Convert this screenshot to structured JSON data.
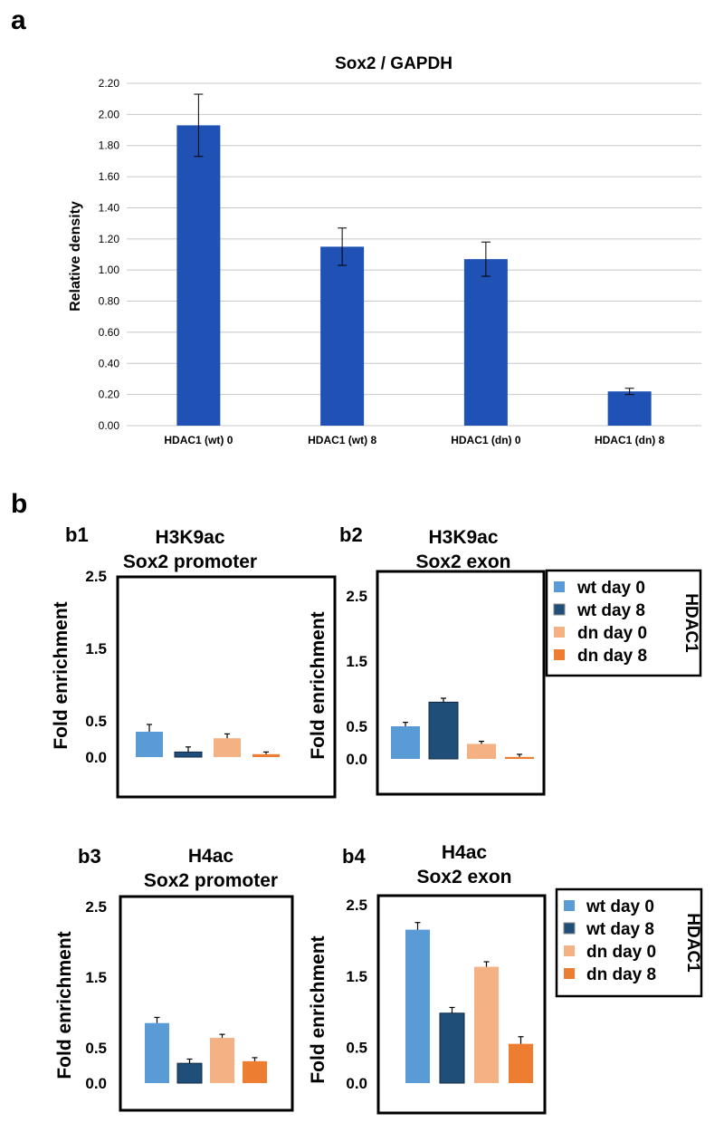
{
  "labels": {
    "a": "a",
    "b": "b"
  },
  "chart_data": [
    {
      "id": "a",
      "type": "bar",
      "title": "Sox2 / GAPDH",
      "ylabel": "Relative density",
      "categories": [
        "HDAC1 (wt) 0",
        "HDAC1 (wt) 8",
        "HDAC1 (dn) 0",
        "HDAC1 (dn) 8"
      ],
      "values": [
        1.93,
        1.15,
        1.07,
        0.22
      ],
      "errors": [
        0.2,
        0.12,
        0.11,
        0.02
      ],
      "ylim": [
        0,
        2.2
      ],
      "yticks": [
        "0.00",
        "0.20",
        "0.40",
        "0.60",
        "0.80",
        "1.00",
        "1.20",
        "1.40",
        "1.60",
        "1.80",
        "2.00",
        "2.20"
      ],
      "grid": true,
      "bar_color": "#1f52b4"
    },
    {
      "id": "b1",
      "type": "bar",
      "label": "b1",
      "title": [
        "H3K9ac",
        "Sox2 promoter"
      ],
      "ylabel": "Fold enrichment",
      "categories": [
        "wt day 0",
        "wt day 8",
        "dn day 0",
        "dn day 8"
      ],
      "values": [
        0.35,
        0.07,
        0.26,
        0.04
      ],
      "errors": [
        0.1,
        0.07,
        0.06,
        0.03
      ],
      "ylim": [
        0,
        2.5
      ],
      "yticks": [
        "0.0",
        "0.5",
        "1.5",
        "2.5"
      ]
    },
    {
      "id": "b2",
      "type": "bar",
      "label": "b2",
      "title": [
        "H3K9ac",
        "Sox2 exon"
      ],
      "ylabel": "Fold enrichment",
      "categories": [
        "wt day 0",
        "wt day 8",
        "dn day 0",
        "dn day 8"
      ],
      "values": [
        0.5,
        0.87,
        0.23,
        0.03
      ],
      "errors": [
        0.06,
        0.06,
        0.04,
        0.04
      ],
      "ylim": [
        0,
        2.5
      ],
      "yticks": [
        "0.0",
        "0.5",
        "1.5",
        "2.5"
      ]
    },
    {
      "id": "b3",
      "type": "bar",
      "label": "b3",
      "title": [
        "H4ac",
        "Sox2 promoter"
      ],
      "ylabel": "Fold enrichment",
      "categories": [
        "wt day 0",
        "wt day 8",
        "dn day 0",
        "dn day 8"
      ],
      "values": [
        0.85,
        0.28,
        0.64,
        0.31
      ],
      "errors": [
        0.08,
        0.06,
        0.05,
        0.05
      ],
      "ylim": [
        0,
        2.5
      ],
      "yticks": [
        "0.0",
        "0.5",
        "1.5",
        "2.5"
      ]
    },
    {
      "id": "b4",
      "type": "bar",
      "label": "b4",
      "title": [
        "H4ac",
        "Sox2 exon"
      ],
      "ylabel": "Fold enrichment",
      "categories": [
        "wt day 0",
        "wt day 8",
        "dn day 0",
        "dn day 8"
      ],
      "values": [
        2.15,
        0.98,
        1.63,
        0.55
      ],
      "errors": [
        0.1,
        0.08,
        0.07,
        0.1
      ],
      "ylim": [
        0,
        2.5
      ],
      "yticks": [
        "0.0",
        "0.5",
        "1.5",
        "2.5"
      ]
    }
  ],
  "legend": {
    "group_label": "HDAC1",
    "entries": [
      {
        "name": "wt day 0",
        "color": "#5b9bd5"
      },
      {
        "name": "wt day 8",
        "color": "#1f4e79"
      },
      {
        "name": "dn day 0",
        "color": "#f4b183"
      },
      {
        "name": "dn day 8",
        "color": "#ed7d31"
      }
    ]
  }
}
